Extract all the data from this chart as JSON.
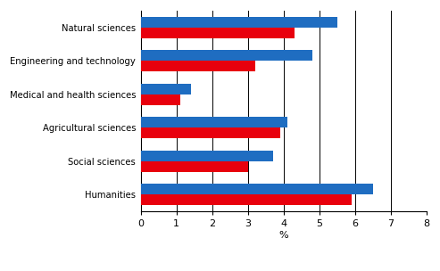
{
  "categories": [
    "Natural sciences",
    "Engineering and technology",
    "Medical and health sciences",
    "Agricultural sciences",
    "Social sciences",
    "Humanities"
  ],
  "doctorate_values": [
    4.3,
    3.2,
    1.1,
    3.9,
    3.0,
    5.9
  ],
  "higher_degree_values": [
    5.5,
    4.8,
    1.4,
    4.1,
    3.7,
    6.5
  ],
  "doctorate_color": "#e8000d",
  "higher_degree_color": "#1f6dc1",
  "xlabel": "%",
  "xlim": [
    0,
    8
  ],
  "xticks": [
    0,
    1,
    2,
    3,
    4,
    5,
    6,
    7,
    8
  ],
  "bar_height": 0.32,
  "background_color": "#ffffff",
  "grid_color": "#000000",
  "figsize": [
    4.93,
    3.04
  ],
  "dpi": 100
}
